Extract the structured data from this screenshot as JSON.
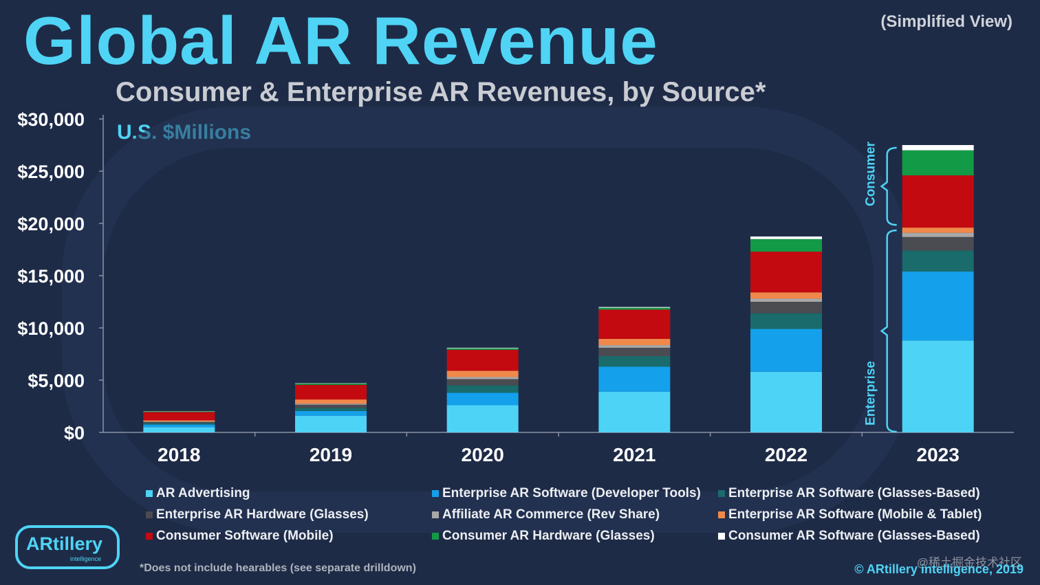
{
  "header": {
    "title": "Global AR Revenue",
    "view_note": "(Simplified View)",
    "subtitle": "Consumer & Enterprise AR Revenues, by Source*",
    "units": "U.S. $Millions"
  },
  "chart_data": {
    "type": "bar",
    "stacked": true,
    "title": "Consumer & Enterprise AR Revenues, by Source*",
    "ylabel": "U.S. $Millions",
    "ylim": [
      0,
      30000
    ],
    "yticks": [
      0,
      5000,
      10000,
      15000,
      20000,
      25000,
      30000
    ],
    "ytick_labels": [
      "$0",
      "$5,000",
      "$10,000",
      "$15,000",
      "$20,000",
      "$25,000",
      "$30,000"
    ],
    "categories": [
      "2018",
      "2019",
      "2020",
      "2021",
      "2022",
      "2023"
    ],
    "series": [
      {
        "name": "AR Advertising",
        "color": "#4dd3f6",
        "values": [
          500,
          1600,
          2600,
          3900,
          5800,
          8800
        ]
      },
      {
        "name": "Enterprise AR Software (Developer Tools)",
        "color": "#14a0ea",
        "values": [
          250,
          450,
          1200,
          2400,
          4100,
          6600
        ]
      },
      {
        "name": "Enterprise AR Software (Glasses-Based)",
        "color": "#1a6b6b",
        "values": [
          150,
          300,
          700,
          1000,
          1500,
          2000
        ]
      },
      {
        "name": "Enterprise AR Hardware (Glasses)",
        "color": "#4a4c52",
        "values": [
          100,
          300,
          600,
          800,
          1100,
          1300
        ]
      },
      {
        "name": "Affiliate AR Commerce (Rev Share)",
        "color": "#a8a8a8",
        "values": [
          50,
          100,
          200,
          250,
          300,
          400
        ]
      },
      {
        "name": "Enterprise AR Software (Mobile & Tablet)",
        "color": "#f0884a",
        "values": [
          100,
          400,
          600,
          600,
          600,
          500
        ]
      },
      {
        "name": "Consumer Software (Mobile)",
        "color": "#c30a10",
        "values": [
          800,
          1400,
          2000,
          2800,
          3900,
          5000
        ]
      },
      {
        "name": "Consumer AR Hardware (Glasses)",
        "color": "#139a46",
        "values": [
          70,
          120,
          150,
          180,
          1200,
          2400
        ]
      },
      {
        "name": "Consumer AR Software (Glasses-Based)",
        "color": "#ffffff",
        "values": [
          20,
          30,
          50,
          70,
          250,
          500
        ]
      }
    ],
    "brackets": [
      "Consumer",
      "Enterprise"
    ],
    "legend_position": "bottom"
  },
  "footer": {
    "footnote": "*Does not include hearables (see separate drilldown)",
    "copyright": "© ARtillery intelligence, 2019",
    "logo_text": "ARtillery",
    "logo_sub": "intelligence",
    "site_watermark": "@稀土掘金技术社区"
  }
}
